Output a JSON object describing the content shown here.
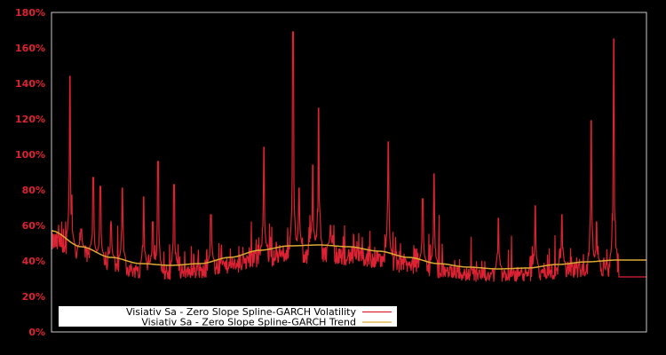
{
  "chart_data": {
    "type": "line",
    "title": "",
    "xlabel": "",
    "ylabel": "",
    "ylim": [
      0,
      180
    ],
    "y_ticks": [
      "0%",
      "20%",
      "40%",
      "60%",
      "80%",
      "100%",
      "120%",
      "140%",
      "160%",
      "180%"
    ],
    "y_tick_values": [
      0,
      20,
      40,
      60,
      80,
      100,
      120,
      140,
      160,
      180
    ],
    "grid": false,
    "legend_position": "lower-left",
    "background": "#000000",
    "series": [
      {
        "name": "Visiativ Sa - Zero Slope Spline-GARCH Volatility",
        "color": "#dd2233",
        "baseline_range": [
          28,
          45
        ],
        "spikes": [
          {
            "x_frac": 0.031,
            "value": 144
          },
          {
            "x_frac": 0.034,
            "value": 77
          },
          {
            "x_frac": 0.05,
            "value": 58
          },
          {
            "x_frac": 0.07,
            "value": 87
          },
          {
            "x_frac": 0.082,
            "value": 82
          },
          {
            "x_frac": 0.1,
            "value": 60
          },
          {
            "x_frac": 0.119,
            "value": 81
          },
          {
            "x_frac": 0.155,
            "value": 76
          },
          {
            "x_frac": 0.17,
            "value": 62
          },
          {
            "x_frac": 0.179,
            "value": 96
          },
          {
            "x_frac": 0.206,
            "value": 83
          },
          {
            "x_frac": 0.268,
            "value": 66
          },
          {
            "x_frac": 0.357,
            "value": 104
          },
          {
            "x_frac": 0.406,
            "value": 169
          },
          {
            "x_frac": 0.416,
            "value": 81
          },
          {
            "x_frac": 0.439,
            "value": 94
          },
          {
            "x_frac": 0.449,
            "value": 126
          },
          {
            "x_frac": 0.469,
            "value": 60
          },
          {
            "x_frac": 0.566,
            "value": 107
          },
          {
            "x_frac": 0.624,
            "value": 75
          },
          {
            "x_frac": 0.643,
            "value": 89
          },
          {
            "x_frac": 0.751,
            "value": 64
          },
          {
            "x_frac": 0.813,
            "value": 71
          },
          {
            "x_frac": 0.858,
            "value": 66
          },
          {
            "x_frac": 0.907,
            "value": 119
          },
          {
            "x_frac": 0.916,
            "value": 62
          },
          {
            "x_frac": 0.945,
            "value": 165
          }
        ],
        "tail_flat_value": 31
      },
      {
        "name": "Visiativ Sa - Zero Slope Spline-GARCH Trend",
        "color": "#ddaa33",
        "points": [
          {
            "x_frac": 0.0,
            "value": 57
          },
          {
            "x_frac": 0.05,
            "value": 48
          },
          {
            "x_frac": 0.1,
            "value": 42
          },
          {
            "x_frac": 0.15,
            "value": 38.5
          },
          {
            "x_frac": 0.2,
            "value": 37.5
          },
          {
            "x_frac": 0.25,
            "value": 38.5
          },
          {
            "x_frac": 0.3,
            "value": 42
          },
          {
            "x_frac": 0.35,
            "value": 46
          },
          {
            "x_frac": 0.4,
            "value": 48.5
          },
          {
            "x_frac": 0.45,
            "value": 49
          },
          {
            "x_frac": 0.5,
            "value": 48
          },
          {
            "x_frac": 0.55,
            "value": 45.5
          },
          {
            "x_frac": 0.6,
            "value": 42
          },
          {
            "x_frac": 0.65,
            "value": 38.5
          },
          {
            "x_frac": 0.7,
            "value": 36.5
          },
          {
            "x_frac": 0.75,
            "value": 35.5
          },
          {
            "x_frac": 0.8,
            "value": 36
          },
          {
            "x_frac": 0.85,
            "value": 38
          },
          {
            "x_frac": 0.9,
            "value": 39.5
          },
          {
            "x_frac": 0.95,
            "value": 40.5
          },
          {
            "x_frac": 1.0,
            "value": 40.5
          }
        ]
      }
    ]
  },
  "legend": {
    "items": [
      {
        "label": "Visiativ Sa - Zero Slope Spline-GARCH Volatility",
        "color": "#dd2233"
      },
      {
        "label": "Visiativ Sa - Zero Slope Spline-GARCH Trend",
        "color": "#ddaa33"
      }
    ]
  }
}
